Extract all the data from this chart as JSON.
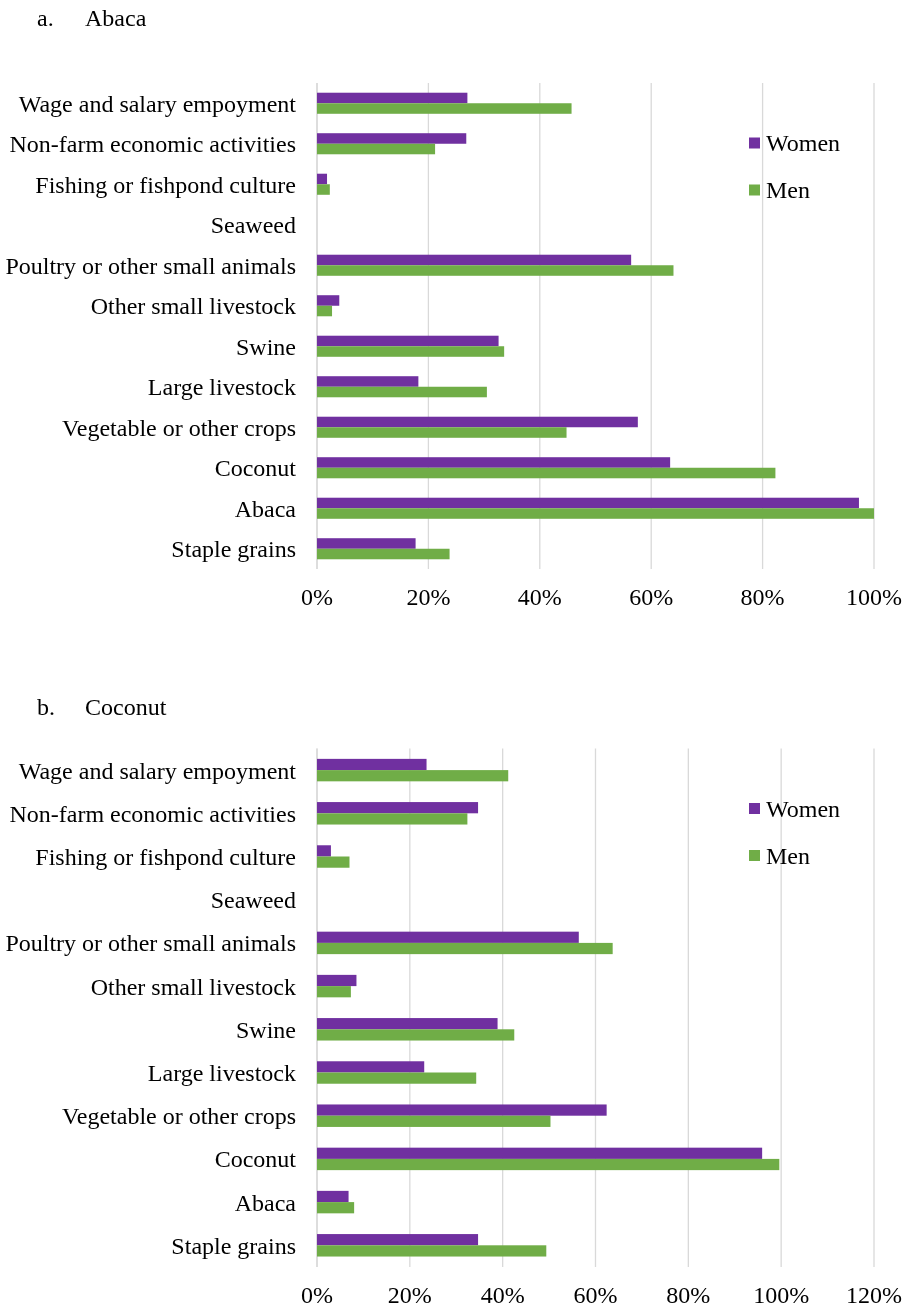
{
  "chart_data": [
    {
      "type": "bar",
      "orientation": "horizontal",
      "title": "a. Abaca",
      "categories": [
        "Wage and salary empoyment",
        "Non-farm economic activities",
        "Fishing or fishpond culture",
        "Seaweed",
        "Poultry or other small animals",
        "Other small livestock",
        "Swine",
        "Large livestock",
        "Vegetable or other crops",
        "Coconut",
        "Abaca",
        "Staple grains"
      ],
      "series": [
        {
          "name": "Women",
          "color": "#7030a0",
          "values": [
            27.0,
            26.8,
            1.8,
            null,
            56.4,
            4.0,
            32.6,
            18.2,
            57.6,
            63.4,
            97.3,
            17.7
          ]
        },
        {
          "name": "Men",
          "color": "#70ad47",
          "values": [
            45.7,
            21.2,
            2.3,
            null,
            64.0,
            2.7,
            33.6,
            30.5,
            44.8,
            82.3,
            100,
            23.8
          ]
        }
      ],
      "xlim": [
        0,
        100
      ],
      "xticks": [
        {
          "value": 0,
          "label": "0%"
        },
        {
          "value": 20,
          "label": "20%"
        },
        {
          "value": 40,
          "label": "40%"
        },
        {
          "value": 60,
          "label": "60%"
        },
        {
          "value": 80,
          "label": "80%"
        },
        {
          "value": 100,
          "label": "100%"
        }
      ],
      "grid": "x",
      "legend": "top right"
    },
    {
      "type": "bar",
      "orientation": "horizontal",
      "title": "b. Coconut",
      "categories": [
        "Wage and salary empoyment",
        "Non-farm economic activities",
        "Fishing or fishpond culture",
        "Seaweed",
        "Poultry or other small animals",
        "Other small livestock",
        "Swine",
        "Large livestock",
        "Vegetable or other crops",
        "Coconut",
        "Abaca",
        "Staple grains"
      ],
      "series": [
        {
          "name": "Women",
          "color": "#7030a0",
          "values": [
            23.6,
            34.7,
            3.0,
            null,
            56.4,
            8.5,
            38.9,
            23.1,
            62.4,
            95.9,
            6.8,
            34.7
          ]
        },
        {
          "name": "Men",
          "color": "#70ad47",
          "values": [
            41.2,
            32.4,
            7.0,
            null,
            63.7,
            7.3,
            42.5,
            34.3,
            50.3,
            99.6,
            8.0,
            49.4
          ]
        }
      ],
      "xlim": [
        0,
        120
      ],
      "xticks": [
        {
          "value": 0,
          "label": "0%"
        },
        {
          "value": 20,
          "label": "20%"
        },
        {
          "value": 40,
          "label": "40%"
        },
        {
          "value": 60,
          "label": "60%"
        },
        {
          "value": 80,
          "label": "80%"
        },
        {
          "value": 100,
          "label": "100%"
        },
        {
          "value": 120,
          "label": "120%"
        }
      ],
      "grid": "x",
      "legend": "top right"
    }
  ]
}
